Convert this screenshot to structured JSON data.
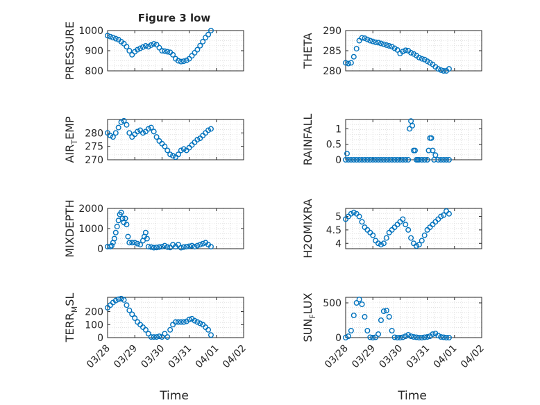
{
  "figure": {
    "title": "Figure 3 low",
    "xlabel": "Time"
  },
  "chart_data": [
    {
      "type": "scatter",
      "ylabel_main": "PRESSURE",
      "ylabel_sub": "",
      "ylim": [
        800,
        1000
      ],
      "yticks": [
        800,
        900,
        1000
      ],
      "ytick_labels": [
        "800",
        "900",
        "1000"
      ],
      "x": [
        0.0,
        0.1,
        0.2,
        0.3,
        0.4,
        0.5,
        0.6,
        0.7,
        0.8,
        0.9,
        1.0,
        1.1,
        1.2,
        1.3,
        1.4,
        1.5,
        1.6,
        1.7,
        1.8,
        1.9,
        2.0,
        2.1,
        2.2,
        2.3,
        2.4,
        2.5,
        2.6,
        2.7,
        2.8,
        2.9,
        3.0,
        3.1,
        3.2,
        3.3,
        3.4,
        3.5,
        3.6,
        3.7,
        3.8
      ],
      "y": [
        975,
        970,
        965,
        960,
        955,
        945,
        935,
        920,
        900,
        880,
        895,
        905,
        912,
        918,
        924,
        920,
        928,
        934,
        930,
        915,
        900,
        898,
        895,
        892,
        880,
        860,
        850,
        846,
        848,
        852,
        860,
        875,
        890,
        905,
        925,
        945,
        965,
        980,
        1000
      ]
    },
    {
      "type": "scatter",
      "ylabel_main": "THETA",
      "ylabel_sub": "",
      "ylim": [
        280,
        290
      ],
      "yticks": [
        280,
        285,
        290
      ],
      "ytick_labels": [
        "280",
        "285",
        "290"
      ],
      "x": [
        0.0,
        0.1,
        0.2,
        0.3,
        0.4,
        0.5,
        0.6,
        0.7,
        0.8,
        0.9,
        1.0,
        1.1,
        1.2,
        1.3,
        1.4,
        1.5,
        1.6,
        1.7,
        1.8,
        1.9,
        2.0,
        2.1,
        2.2,
        2.3,
        2.4,
        2.5,
        2.6,
        2.7,
        2.8,
        2.9,
        3.0,
        3.1,
        3.2,
        3.3,
        3.4,
        3.5,
        3.6,
        3.7,
        3.8
      ],
      "y": [
        282,
        281.8,
        282,
        283.5,
        285.5,
        287.5,
        288.2,
        288.1,
        287.8,
        287.5,
        287.3,
        287.1,
        287,
        286.8,
        286.6,
        286.4,
        286.2,
        286,
        285.6,
        285.2,
        284.3,
        284.8,
        285.1,
        285,
        284.5,
        284.2,
        283.8,
        283.3,
        283,
        282.8,
        282.4,
        282,
        281.6,
        281,
        280.5,
        280.2,
        280,
        280,
        280.5
      ]
    },
    {
      "type": "scatter",
      "ylabel_main": "AIR",
      "ylabel_sub": "T",
      "ylabel_tail": "EMP",
      "ylim": [
        270,
        285
      ],
      "yticks": [
        270,
        275,
        280
      ],
      "ytick_labels": [
        "270",
        "275",
        "280"
      ],
      "x": [
        0.0,
        0.1,
        0.2,
        0.3,
        0.4,
        0.5,
        0.6,
        0.7,
        0.8,
        0.9,
        1.0,
        1.1,
        1.2,
        1.3,
        1.4,
        1.5,
        1.6,
        1.7,
        1.8,
        1.9,
        2.0,
        2.1,
        2.2,
        2.3,
        2.4,
        2.5,
        2.6,
        2.7,
        2.8,
        2.9,
        3.0,
        3.1,
        3.2,
        3.3,
        3.4,
        3.5,
        3.6,
        3.7,
        3.8
      ],
      "y": [
        280,
        279,
        278.5,
        280,
        282,
        284,
        284.5,
        283,
        280,
        278.5,
        279.5,
        280.5,
        281,
        280,
        280.5,
        281.5,
        282,
        280.5,
        278.5,
        277,
        276,
        275,
        273.5,
        272,
        271.5,
        271,
        272,
        273.5,
        274,
        273.5,
        274.5,
        275.5,
        276.5,
        277.5,
        278,
        279,
        280,
        281,
        281.5
      ]
    },
    {
      "type": "scatter",
      "ylabel_main": "RAINFALL",
      "ylabel_sub": "",
      "ylim": [
        0,
        1.3
      ],
      "yticks": [
        0,
        0.5,
        1
      ],
      "ytick_labels": [
        "0",
        "0.5",
        "1"
      ],
      "x": [
        0.0,
        0.05,
        0.1,
        0.2,
        0.3,
        0.4,
        0.5,
        0.6,
        0.7,
        0.8,
        0.9,
        1.0,
        1.1,
        1.2,
        1.3,
        1.4,
        1.5,
        1.6,
        1.7,
        1.8,
        1.9,
        2.0,
        2.1,
        2.2,
        2.3,
        2.35,
        2.4,
        2.45,
        2.5,
        2.55,
        2.6,
        2.65,
        2.7,
        2.8,
        2.9,
        3.0,
        3.05,
        3.1,
        3.15,
        3.2,
        3.25,
        3.3,
        3.4,
        3.5,
        3.6,
        3.7,
        3.8
      ],
      "y": [
        0,
        0.2,
        0,
        0,
        0,
        0,
        0,
        0,
        0,
        0,
        0,
        0,
        0,
        0,
        0,
        0,
        0,
        0,
        0,
        0,
        0,
        0,
        0,
        0,
        0,
        1,
        1.25,
        1.1,
        0.3,
        0.3,
        0,
        0,
        0,
        0,
        0,
        0,
        0.3,
        0.7,
        0.7,
        0.3,
        0,
        0.15,
        0,
        0,
        0,
        0,
        0
      ]
    },
    {
      "type": "scatter",
      "ylabel_main": "MIXDEPTH",
      "ylabel_sub": "",
      "ylim": [
        0,
        2000
      ],
      "yticks": [
        0,
        1000,
        2000
      ],
      "ytick_labels": [
        "0",
        "1000",
        "2000"
      ],
      "x": [
        0.0,
        0.1,
        0.15,
        0.2,
        0.25,
        0.3,
        0.35,
        0.4,
        0.45,
        0.5,
        0.55,
        0.6,
        0.65,
        0.7,
        0.75,
        0.8,
        0.9,
        1.0,
        1.1,
        1.2,
        1.3,
        1.35,
        1.4,
        1.45,
        1.5,
        1.6,
        1.7,
        1.8,
        1.9,
        2.0,
        2.1,
        2.2,
        2.3,
        2.4,
        2.5,
        2.6,
        2.7,
        2.8,
        2.9,
        3.0,
        3.1,
        3.2,
        3.3,
        3.4,
        3.5,
        3.6,
        3.7,
        3.8
      ],
      "y": [
        100,
        100,
        150,
        300,
        500,
        800,
        1100,
        1400,
        1700,
        1800,
        1500,
        1300,
        1500,
        1200,
        600,
        300,
        300,
        300,
        250,
        200,
        400,
        600,
        800,
        500,
        100,
        80,
        50,
        60,
        80,
        100,
        150,
        80,
        60,
        200,
        100,
        200,
        50,
        80,
        100,
        120,
        150,
        100,
        150,
        200,
        250,
        300,
        200,
        100
      ]
    },
    {
      "type": "scatter",
      "ylabel_main": "H2OMIXRA",
      "ylabel_sub": "",
      "ylim": [
        3.8,
        5.3
      ],
      "yticks": [
        4,
        4.5,
        5
      ],
      "ytick_labels": [
        "4",
        "4.5",
        "5"
      ],
      "x": [
        0.0,
        0.1,
        0.2,
        0.3,
        0.4,
        0.5,
        0.6,
        0.7,
        0.8,
        0.9,
        1.0,
        1.1,
        1.2,
        1.3,
        1.4,
        1.5,
        1.6,
        1.7,
        1.8,
        1.9,
        2.0,
        2.1,
        2.2,
        2.3,
        2.4,
        2.5,
        2.6,
        2.7,
        2.8,
        2.9,
        3.0,
        3.1,
        3.2,
        3.3,
        3.4,
        3.5,
        3.6,
        3.7,
        3.8
      ],
      "y": [
        4.9,
        5.0,
        5.1,
        5.15,
        5.1,
        5.0,
        4.8,
        4.6,
        4.5,
        4.4,
        4.3,
        4.1,
        4.0,
        3.95,
        4.0,
        4.2,
        4.4,
        4.5,
        4.6,
        4.7,
        4.8,
        4.9,
        4.7,
        4.5,
        4.2,
        4.0,
        3.9,
        3.95,
        4.1,
        4.3,
        4.5,
        4.6,
        4.7,
        4.8,
        4.9,
        5.0,
        5.05,
        5.2,
        5.1
      ]
    },
    {
      "type": "scatter",
      "ylabel_main": "TERR",
      "ylabel_sub": "M",
      "ylabel_tail": "SL",
      "ylim": [
        0,
        310
      ],
      "yticks": [
        0,
        100,
        200
      ],
      "ytick_labels": [
        "0",
        "100",
        "200"
      ],
      "x": [
        0.0,
        0.1,
        0.2,
        0.3,
        0.4,
        0.5,
        0.6,
        0.7,
        0.8,
        0.9,
        1.0,
        1.1,
        1.2,
        1.3,
        1.4,
        1.5,
        1.6,
        1.7,
        1.8,
        1.9,
        2.0,
        2.1,
        2.2,
        2.3,
        2.4,
        2.5,
        2.6,
        2.7,
        2.8,
        2.9,
        3.0,
        3.1,
        3.2,
        3.3,
        3.4,
        3.5,
        3.6,
        3.7,
        3.8
      ],
      "y": [
        230,
        250,
        270,
        285,
        295,
        300,
        290,
        250,
        210,
        180,
        150,
        120,
        100,
        80,
        60,
        30,
        5,
        5,
        5,
        10,
        5,
        30,
        5,
        60,
        100,
        120,
        120,
        120,
        120,
        125,
        140,
        145,
        130,
        120,
        110,
        100,
        80,
        60,
        20
      ]
    },
    {
      "type": "scatter",
      "ylabel_main": "SUN",
      "ylabel_sub": "F",
      "ylabel_tail": "LUX",
      "ylim": [
        0,
        580
      ],
      "yticks": [
        0,
        500
      ],
      "ytick_labels": [
        "0",
        "500"
      ],
      "x": [
        0.0,
        0.1,
        0.2,
        0.3,
        0.4,
        0.5,
        0.6,
        0.7,
        0.8,
        0.9,
        1.0,
        1.1,
        1.2,
        1.3,
        1.4,
        1.5,
        1.6,
        1.7,
        1.8,
        1.9,
        2.0,
        2.1,
        2.2,
        2.3,
        2.4,
        2.5,
        2.6,
        2.7,
        2.8,
        2.9,
        3.0,
        3.1,
        3.2,
        3.3,
        3.4,
        3.5,
        3.6,
        3.7,
        3.8
      ],
      "y": [
        0,
        20,
        100,
        320,
        500,
        550,
        480,
        300,
        100,
        5,
        0,
        5,
        50,
        250,
        380,
        390,
        300,
        100,
        5,
        0,
        0,
        5,
        20,
        40,
        20,
        10,
        5,
        0,
        0,
        5,
        10,
        20,
        50,
        60,
        30,
        10,
        5,
        0,
        0
      ]
    }
  ],
  "x_axis": {
    "xlim": [
      0,
      5
    ],
    "ticks": [
      0,
      1,
      2,
      3,
      4,
      5
    ],
    "tick_labels": [
      "03/28",
      "03/29",
      "03/30",
      "03/31",
      "04/01",
      "04/02"
    ]
  },
  "colors": {
    "marker": "#0072BD",
    "grid": "#d9d9d9",
    "axis": "#262626"
  }
}
